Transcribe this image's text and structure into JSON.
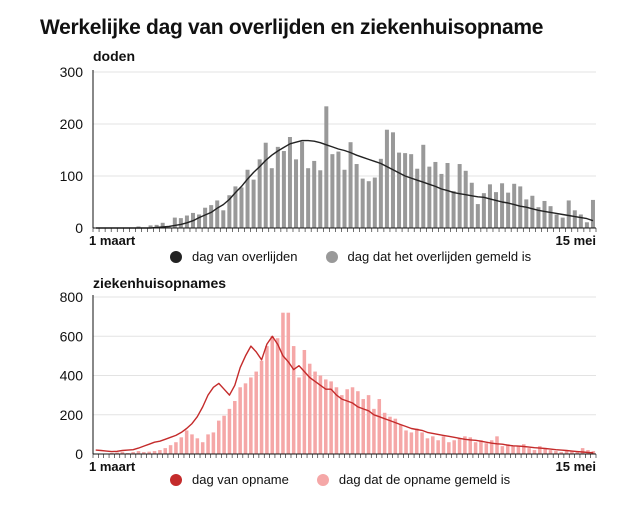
{
  "page": {
    "title": "Werkelijke dag van overlijden en ziekenhuisopname"
  },
  "chart_data": [
    {
      "type": "bar+line",
      "title": "doden",
      "x_start_label": "1 maart",
      "x_end_label": "15 mei",
      "ylim": [
        0,
        300
      ],
      "yticks": [
        0,
        100,
        200,
        300
      ],
      "colors": {
        "bar": "#999999",
        "line": "#222222"
      },
      "legend": {
        "line_label": "dag van overlijden",
        "bar_label": "dag dat het overlijden gemeld is"
      },
      "series": [
        {
          "name": "dag dat het overlijden gemeld is",
          "kind": "bar",
          "values": [
            0,
            0,
            0,
            0,
            0,
            0,
            1,
            3,
            0,
            5,
            6,
            10,
            4,
            20,
            19,
            24,
            29,
            26,
            39,
            44,
            53,
            34,
            63,
            80,
            78,
            112,
            93,
            132,
            164,
            115,
            156,
            148,
            175,
            132,
            166,
            115,
            129,
            111,
            234,
            142,
            147,
            112,
            165,
            123,
            95,
            90,
            97,
            133,
            189,
            184,
            145,
            144,
            142,
            114,
            160,
            118,
            127,
            104,
            125,
            71,
            123,
            110,
            87,
            46,
            67,
            84,
            69,
            86,
            68,
            85,
            80,
            55,
            62,
            40,
            52,
            42,
            26,
            20,
            53,
            34,
            26,
            11,
            54
          ]
        },
        {
          "name": "dag van overlijden",
          "kind": "line",
          "values": [
            0,
            0,
            0,
            0,
            0,
            0,
            0,
            0,
            0,
            0,
            1,
            2,
            3,
            5,
            7,
            10,
            14,
            20,
            25,
            30,
            38,
            45,
            55,
            68,
            80,
            94,
            107,
            118,
            130,
            140,
            148,
            155,
            162,
            165,
            168,
            168,
            167,
            164,
            160,
            156,
            152,
            149,
            145,
            140,
            136,
            132,
            128,
            124,
            118,
            112,
            106,
            100,
            96,
            92,
            88,
            84,
            80,
            75,
            72,
            68,
            66,
            64,
            62,
            60,
            59,
            56,
            53,
            50,
            48,
            45,
            42,
            40,
            37,
            34,
            32,
            30,
            28,
            26,
            24,
            22,
            20,
            18,
            14
          ]
        }
      ]
    },
    {
      "type": "bar+line",
      "title": "ziekenhuisopnames",
      "x_start_label": "1 maart",
      "x_end_label": "15 mei",
      "ylim": [
        0,
        800
      ],
      "yticks": [
        0,
        200,
        400,
        600,
        800
      ],
      "colors": {
        "bar": "#f5a7a7",
        "line": "#c42b2b"
      },
      "legend": {
        "line_label": "dag van opname",
        "bar_label": "dag dat de opname gemeld is"
      },
      "series": [
        {
          "name": "dag dat de opname gemeld is",
          "kind": "bar",
          "values": [
            0,
            0,
            0,
            5,
            8,
            10,
            5,
            10,
            15,
            10,
            12,
            15,
            20,
            30,
            45,
            60,
            85,
            120,
            100,
            80,
            60,
            100,
            110,
            170,
            195,
            230,
            270,
            340,
            360,
            390,
            420,
            475,
            550,
            600,
            590,
            720,
            720,
            550,
            390,
            530,
            460,
            420,
            400,
            380,
            370,
            340,
            300,
            330,
            340,
            320,
            280,
            300,
            230,
            280,
            210,
            190,
            180,
            150,
            120,
            110,
            130,
            110,
            80,
            90,
            70,
            90,
            60,
            70,
            80,
            90,
            85,
            60,
            70,
            55,
            70,
            90,
            40,
            50,
            40,
            40,
            50,
            30,
            20,
            40,
            30,
            20,
            15,
            10,
            20,
            15,
            10,
            30,
            20,
            15
          ]
        },
        {
          "name": "dag van opname",
          "kind": "line",
          "values": [
            20,
            18,
            15,
            12,
            14,
            18,
            20,
            22,
            30,
            40,
            50,
            60,
            65,
            75,
            85,
            95,
            110,
            130,
            155,
            190,
            240,
            300,
            340,
            360,
            330,
            300,
            350,
            440,
            500,
            550,
            520,
            480,
            560,
            600,
            560,
            500,
            470,
            430,
            450,
            420,
            390,
            370,
            350,
            330,
            330,
            300,
            280,
            270,
            260,
            240,
            230,
            220,
            200,
            190,
            180,
            170,
            160,
            150,
            140,
            130,
            125,
            120,
            110,
            105,
            100,
            95,
            90,
            85,
            80,
            75,
            72,
            70,
            65,
            60,
            55,
            52,
            50,
            45,
            42,
            40,
            38,
            35,
            32,
            30,
            28,
            25,
            22,
            20,
            18,
            15,
            12,
            10,
            8,
            6
          ]
        }
      ]
    }
  ]
}
